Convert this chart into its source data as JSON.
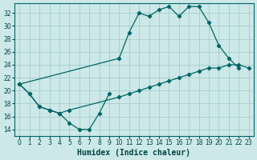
{
  "xlabel": "Humidex (Indice chaleur)",
  "background_color": "#cce8e8",
  "grid_color": "#9fc8c8",
  "line_color": "#006666",
  "xlim": [
    -0.5,
    23.5
  ],
  "ylim": [
    13.0,
    33.5
  ],
  "xticks": [
    0,
    1,
    2,
    3,
    4,
    5,
    6,
    7,
    8,
    9,
    10,
    11,
    12,
    13,
    14,
    15,
    16,
    17,
    18,
    19,
    20,
    21,
    22,
    23
  ],
  "yticks": [
    14,
    16,
    18,
    20,
    22,
    24,
    26,
    28,
    30,
    32
  ],
  "line_zigzag_x": [
    0,
    1,
    2,
    3,
    4,
    5,
    6,
    7,
    8,
    9
  ],
  "line_zigzag_y": [
    21.0,
    19.5,
    17.5,
    17.0,
    16.5,
    15.0,
    14.0,
    14.0,
    16.5,
    19.5
  ],
  "line_lower_x": [
    0,
    1,
    2,
    3,
    4,
    5,
    10,
    11,
    12,
    13,
    14,
    15,
    16,
    17,
    18,
    19,
    20,
    21,
    22,
    23
  ],
  "line_lower_y": [
    21.0,
    19.5,
    17.5,
    17.0,
    16.5,
    17.0,
    19.0,
    19.5,
    20.0,
    20.5,
    21.0,
    21.5,
    22.0,
    22.5,
    23.0,
    23.5,
    23.5,
    24.0,
    24.0,
    23.5
  ],
  "line_upper_x": [
    0,
    10,
    11,
    12,
    13,
    14,
    15,
    16,
    17,
    18,
    19,
    20,
    21,
    22
  ],
  "line_upper_y": [
    21.0,
    25.0,
    29.0,
    32.0,
    31.5,
    32.5,
    33.0,
    31.5,
    33.0,
    33.0,
    30.5,
    27.0,
    25.0,
    23.5
  ]
}
